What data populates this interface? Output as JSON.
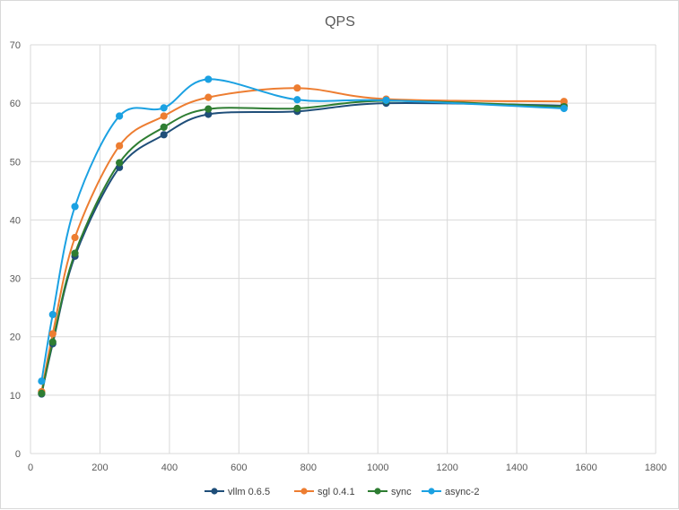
{
  "chart_data": {
    "type": "line",
    "smooth": true,
    "markers": true,
    "title": "QPS",
    "xlabel": "",
    "ylabel": "",
    "xlim": [
      0,
      1800
    ],
    "ylim": [
      0,
      70
    ],
    "xticks": [
      0,
      200,
      400,
      600,
      800,
      1000,
      1200,
      1400,
      1600,
      1800
    ],
    "yticks": [
      0,
      10,
      20,
      30,
      40,
      50,
      60,
      70
    ],
    "grid": true,
    "legend_position": "bottom",
    "x": [
      32,
      64,
      128,
      256,
      384,
      512,
      768,
      1024,
      1536
    ],
    "series": [
      {
        "name": "vllm 0.6.5",
        "color": "#1f4e79",
        "values": [
          10.2,
          18.8,
          33.8,
          49.0,
          54.6,
          58.1,
          58.6,
          60.0,
          59.6
        ]
      },
      {
        "name": "sgl 0.4.1",
        "color": "#ed7d31",
        "values": [
          10.6,
          20.5,
          37.0,
          52.7,
          57.8,
          61.0,
          62.6,
          60.7,
          60.3
        ]
      },
      {
        "name": "sync",
        "color": "#2e7d32",
        "values": [
          10.3,
          19.1,
          34.3,
          49.8,
          55.9,
          59.0,
          59.1,
          60.4,
          59.4
        ]
      },
      {
        "name": "async-2",
        "color": "#1ba1e2",
        "values": [
          12.4,
          23.8,
          42.3,
          57.8,
          59.2,
          64.1,
          60.6,
          60.5,
          59.1
        ]
      }
    ]
  }
}
